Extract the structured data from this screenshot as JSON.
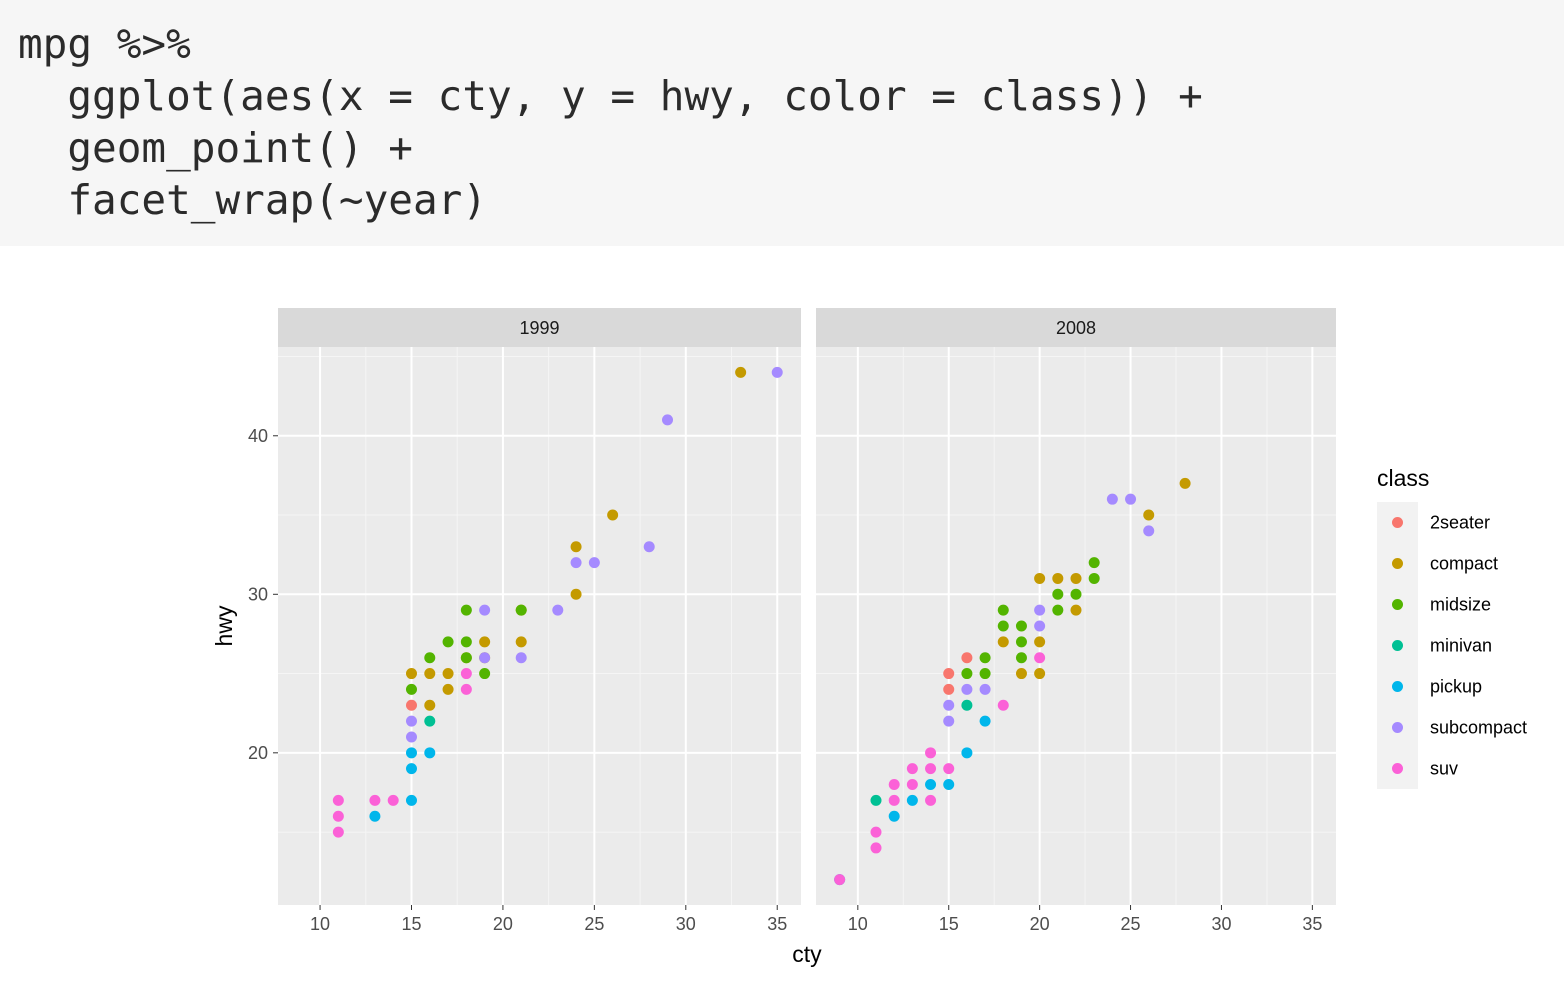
{
  "code": {
    "lines": [
      "mpg %>%",
      "  ggplot(aes(x = cty, y = hwy, color = class)) +",
      "  geom_point() +",
      "  facet_wrap(~year)"
    ]
  },
  "chart_data": {
    "type": "scatter",
    "xlabel": "cty",
    "ylabel": "hwy",
    "xlim": [
      7.7,
      36.3
    ],
    "ylim": [
      10.4,
      45.6
    ],
    "x_ticks": [
      10,
      15,
      20,
      25,
      30,
      35
    ],
    "x_tick_labels": [
      "10",
      "15",
      "20",
      "25",
      "30",
      "35"
    ],
    "y_ticks": [
      20,
      30,
      40
    ],
    "y_tick_labels": [
      "20",
      "30",
      "40"
    ],
    "grid": true,
    "legend": {
      "title": "class",
      "placement": "right",
      "entries": [
        {
          "key": "2seater",
          "label": "2seater",
          "color": "#F8766D"
        },
        {
          "key": "compact",
          "label": "compact",
          "color": "#C49A00"
        },
        {
          "key": "midsize",
          "label": "midsize",
          "color": "#53B400"
        },
        {
          "key": "minivan",
          "label": "minivan",
          "color": "#00C094"
        },
        {
          "key": "pickup",
          "label": "pickup",
          "color": "#00B6EB"
        },
        {
          "key": "subcompact",
          "label": "subcompact",
          "color": "#A58AFF"
        },
        {
          "key": "suv",
          "label": "suv",
          "color": "#FB61D7"
        }
      ]
    },
    "panels": [
      {
        "label": "1999",
        "points": [
          {
            "x": 15,
            "y": 23,
            "class": "2seater"
          },
          {
            "x": 15,
            "y": 25,
            "class": "compact"
          },
          {
            "x": 16,
            "y": 23,
            "class": "compact"
          },
          {
            "x": 16,
            "y": 25,
            "class": "compact"
          },
          {
            "x": 17,
            "y": 24,
            "class": "compact"
          },
          {
            "x": 17,
            "y": 25,
            "class": "compact"
          },
          {
            "x": 18,
            "y": 26,
            "class": "compact"
          },
          {
            "x": 19,
            "y": 26,
            "class": "compact"
          },
          {
            "x": 19,
            "y": 27,
            "class": "compact"
          },
          {
            "x": 21,
            "y": 27,
            "class": "compact"
          },
          {
            "x": 21,
            "y": 29,
            "class": "compact"
          },
          {
            "x": 24,
            "y": 30,
            "class": "compact"
          },
          {
            "x": 24,
            "y": 33,
            "class": "compact"
          },
          {
            "x": 26,
            "y": 35,
            "class": "compact"
          },
          {
            "x": 33,
            "y": 44,
            "class": "compact"
          },
          {
            "x": 15,
            "y": 24,
            "class": "midsize"
          },
          {
            "x": 16,
            "y": 26,
            "class": "midsize"
          },
          {
            "x": 17,
            "y": 27,
            "class": "midsize"
          },
          {
            "x": 18,
            "y": 26,
            "class": "midsize"
          },
          {
            "x": 18,
            "y": 27,
            "class": "midsize"
          },
          {
            "x": 18,
            "y": 29,
            "class": "midsize"
          },
          {
            "x": 19,
            "y": 25,
            "class": "midsize"
          },
          {
            "x": 21,
            "y": 29,
            "class": "midsize"
          },
          {
            "x": 16,
            "y": 22,
            "class": "minivan"
          },
          {
            "x": 13,
            "y": 16,
            "class": "pickup"
          },
          {
            "x": 15,
            "y": 17,
            "class": "pickup"
          },
          {
            "x": 15,
            "y": 19,
            "class": "pickup"
          },
          {
            "x": 15,
            "y": 20,
            "class": "pickup"
          },
          {
            "x": 16,
            "y": 20,
            "class": "pickup"
          },
          {
            "x": 15,
            "y": 21,
            "class": "subcompact"
          },
          {
            "x": 15,
            "y": 22,
            "class": "subcompact"
          },
          {
            "x": 19,
            "y": 26,
            "class": "subcompact"
          },
          {
            "x": 19,
            "y": 29,
            "class": "subcompact"
          },
          {
            "x": 21,
            "y": 26,
            "class": "subcompact"
          },
          {
            "x": 23,
            "y": 29,
            "class": "subcompact"
          },
          {
            "x": 24,
            "y": 32,
            "class": "subcompact"
          },
          {
            "x": 25,
            "y": 32,
            "class": "subcompact"
          },
          {
            "x": 28,
            "y": 33,
            "class": "subcompact"
          },
          {
            "x": 29,
            "y": 41,
            "class": "subcompact"
          },
          {
            "x": 35,
            "y": 44,
            "class": "subcompact"
          },
          {
            "x": 11,
            "y": 15,
            "class": "suv"
          },
          {
            "x": 11,
            "y": 16,
            "class": "suv"
          },
          {
            "x": 11,
            "y": 17,
            "class": "suv"
          },
          {
            "x": 13,
            "y": 17,
            "class": "suv"
          },
          {
            "x": 14,
            "y": 17,
            "class": "suv"
          },
          {
            "x": 18,
            "y": 24,
            "class": "suv"
          },
          {
            "x": 18,
            "y": 25,
            "class": "suv"
          }
        ]
      },
      {
        "label": "2008",
        "points": [
          {
            "x": 15,
            "y": 24,
            "class": "2seater"
          },
          {
            "x": 15,
            "y": 25,
            "class": "2seater"
          },
          {
            "x": 16,
            "y": 26,
            "class": "2seater"
          },
          {
            "x": 18,
            "y": 27,
            "class": "compact"
          },
          {
            "x": 19,
            "y": 25,
            "class": "compact"
          },
          {
            "x": 20,
            "y": 25,
            "class": "compact"
          },
          {
            "x": 20,
            "y": 27,
            "class": "compact"
          },
          {
            "x": 20,
            "y": 31,
            "class": "compact"
          },
          {
            "x": 21,
            "y": 31,
            "class": "compact"
          },
          {
            "x": 22,
            "y": 29,
            "class": "compact"
          },
          {
            "x": 22,
            "y": 31,
            "class": "compact"
          },
          {
            "x": 26,
            "y": 35,
            "class": "compact"
          },
          {
            "x": 28,
            "y": 37,
            "class": "compact"
          },
          {
            "x": 16,
            "y": 25,
            "class": "midsize"
          },
          {
            "x": 17,
            "y": 25,
            "class": "midsize"
          },
          {
            "x": 17,
            "y": 26,
            "class": "midsize"
          },
          {
            "x": 18,
            "y": 28,
            "class": "midsize"
          },
          {
            "x": 18,
            "y": 29,
            "class": "midsize"
          },
          {
            "x": 19,
            "y": 26,
            "class": "midsize"
          },
          {
            "x": 19,
            "y": 27,
            "class": "midsize"
          },
          {
            "x": 19,
            "y": 28,
            "class": "midsize"
          },
          {
            "x": 21,
            "y": 29,
            "class": "midsize"
          },
          {
            "x": 21,
            "y": 30,
            "class": "midsize"
          },
          {
            "x": 22,
            "y": 30,
            "class": "midsize"
          },
          {
            "x": 23,
            "y": 31,
            "class": "midsize"
          },
          {
            "x": 23,
            "y": 32,
            "class": "midsize"
          },
          {
            "x": 11,
            "y": 17,
            "class": "minivan"
          },
          {
            "x": 16,
            "y": 23,
            "class": "minivan"
          },
          {
            "x": 9,
            "y": 12,
            "class": "pickup"
          },
          {
            "x": 12,
            "y": 16,
            "class": "pickup"
          },
          {
            "x": 13,
            "y": 17,
            "class": "pickup"
          },
          {
            "x": 14,
            "y": 18,
            "class": "pickup"
          },
          {
            "x": 15,
            "y": 18,
            "class": "pickup"
          },
          {
            "x": 16,
            "y": 20,
            "class": "pickup"
          },
          {
            "x": 17,
            "y": 22,
            "class": "pickup"
          },
          {
            "x": 15,
            "y": 22,
            "class": "subcompact"
          },
          {
            "x": 15,
            "y": 23,
            "class": "subcompact"
          },
          {
            "x": 16,
            "y": 24,
            "class": "subcompact"
          },
          {
            "x": 17,
            "y": 24,
            "class": "subcompact"
          },
          {
            "x": 20,
            "y": 28,
            "class": "subcompact"
          },
          {
            "x": 20,
            "y": 29,
            "class": "subcompact"
          },
          {
            "x": 24,
            "y": 36,
            "class": "subcompact"
          },
          {
            "x": 25,
            "y": 36,
            "class": "subcompact"
          },
          {
            "x": 26,
            "y": 34,
            "class": "subcompact"
          },
          {
            "x": 9,
            "y": 12,
            "class": "suv"
          },
          {
            "x": 11,
            "y": 14,
            "class": "suv"
          },
          {
            "x": 11,
            "y": 15,
            "class": "suv"
          },
          {
            "x": 12,
            "y": 17,
            "class": "suv"
          },
          {
            "x": 12,
            "y": 18,
            "class": "suv"
          },
          {
            "x": 13,
            "y": 18,
            "class": "suv"
          },
          {
            "x": 13,
            "y": 19,
            "class": "suv"
          },
          {
            "x": 14,
            "y": 17,
            "class": "suv"
          },
          {
            "x": 14,
            "y": 19,
            "class": "suv"
          },
          {
            "x": 14,
            "y": 20,
            "class": "suv"
          },
          {
            "x": 15,
            "y": 19,
            "class": "suv"
          },
          {
            "x": 18,
            "y": 23,
            "class": "suv"
          },
          {
            "x": 20,
            "y": 26,
            "class": "suv"
          }
        ]
      }
    ]
  }
}
